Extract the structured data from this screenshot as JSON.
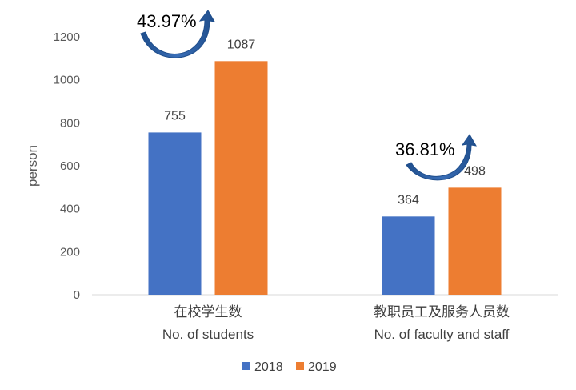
{
  "chart_data": {
    "type": "bar",
    "ylabel": "person",
    "ylim": [
      0,
      1200
    ],
    "yticks": [
      "0",
      "200",
      "400",
      "600",
      "800",
      "1000",
      "1200"
    ],
    "categories": [
      {
        "line1": "在校学生数",
        "line2": "No. of students"
      },
      {
        "line1": "教职员工及服务人员数",
        "line2": "No. of faculty and staff"
      }
    ],
    "series": [
      {
        "name": "2018",
        "color": "#4472C4",
        "values": [
          755,
          364
        ]
      },
      {
        "name": "2019",
        "color": "#ED7D31",
        "values": [
          1087,
          498
        ]
      }
    ],
    "growth_labels": [
      "43.97%",
      "36.81%"
    ],
    "arrow_color": "#2E5597",
    "grid": false,
    "legend_position": "bottom"
  }
}
